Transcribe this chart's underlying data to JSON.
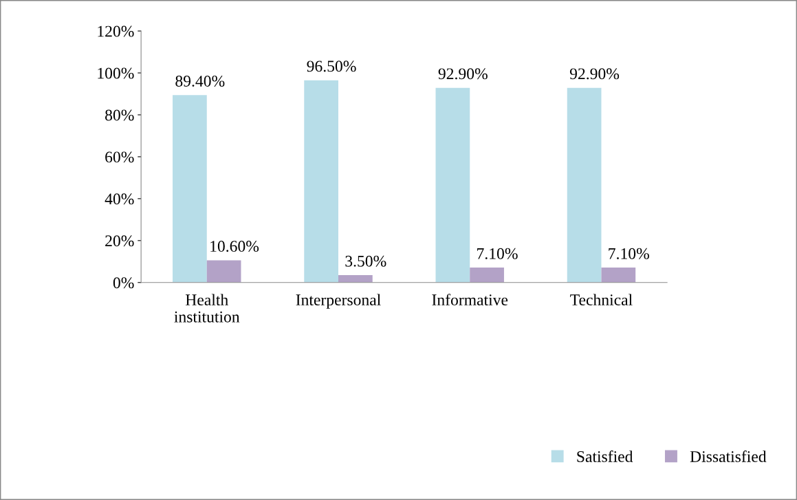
{
  "chart_data": {
    "type": "bar",
    "categories": [
      "Health\ninstitution",
      "Interpersonal",
      "Informative",
      "Technical"
    ],
    "series": [
      {
        "name": "Satisfied",
        "color": "#b7dde8",
        "values": [
          89.4,
          96.5,
          92.9,
          92.9
        ],
        "value_labels": [
          "89.40%",
          "96.50%",
          "92.90%",
          "92.90%"
        ]
      },
      {
        "name": "Dissatisfied",
        "color": "#b3a2c7",
        "values": [
          10.6,
          3.5,
          7.1,
          7.1
        ],
        "value_labels": [
          "10.60%",
          "3.50%",
          "7.10%",
          "7.10%"
        ]
      }
    ],
    "ylim": [
      0,
      120
    ],
    "yticks": [
      {
        "value": 0,
        "label": "0%"
      },
      {
        "value": 20,
        "label": "20%"
      },
      {
        "value": 40,
        "label": "40%"
      },
      {
        "value": 60,
        "label": "60%"
      },
      {
        "value": 80,
        "label": "80%"
      },
      {
        "value": 100,
        "label": "100%"
      },
      {
        "value": 120,
        "label": "120%"
      }
    ],
    "grid": false,
    "legend": "bottom right"
  }
}
